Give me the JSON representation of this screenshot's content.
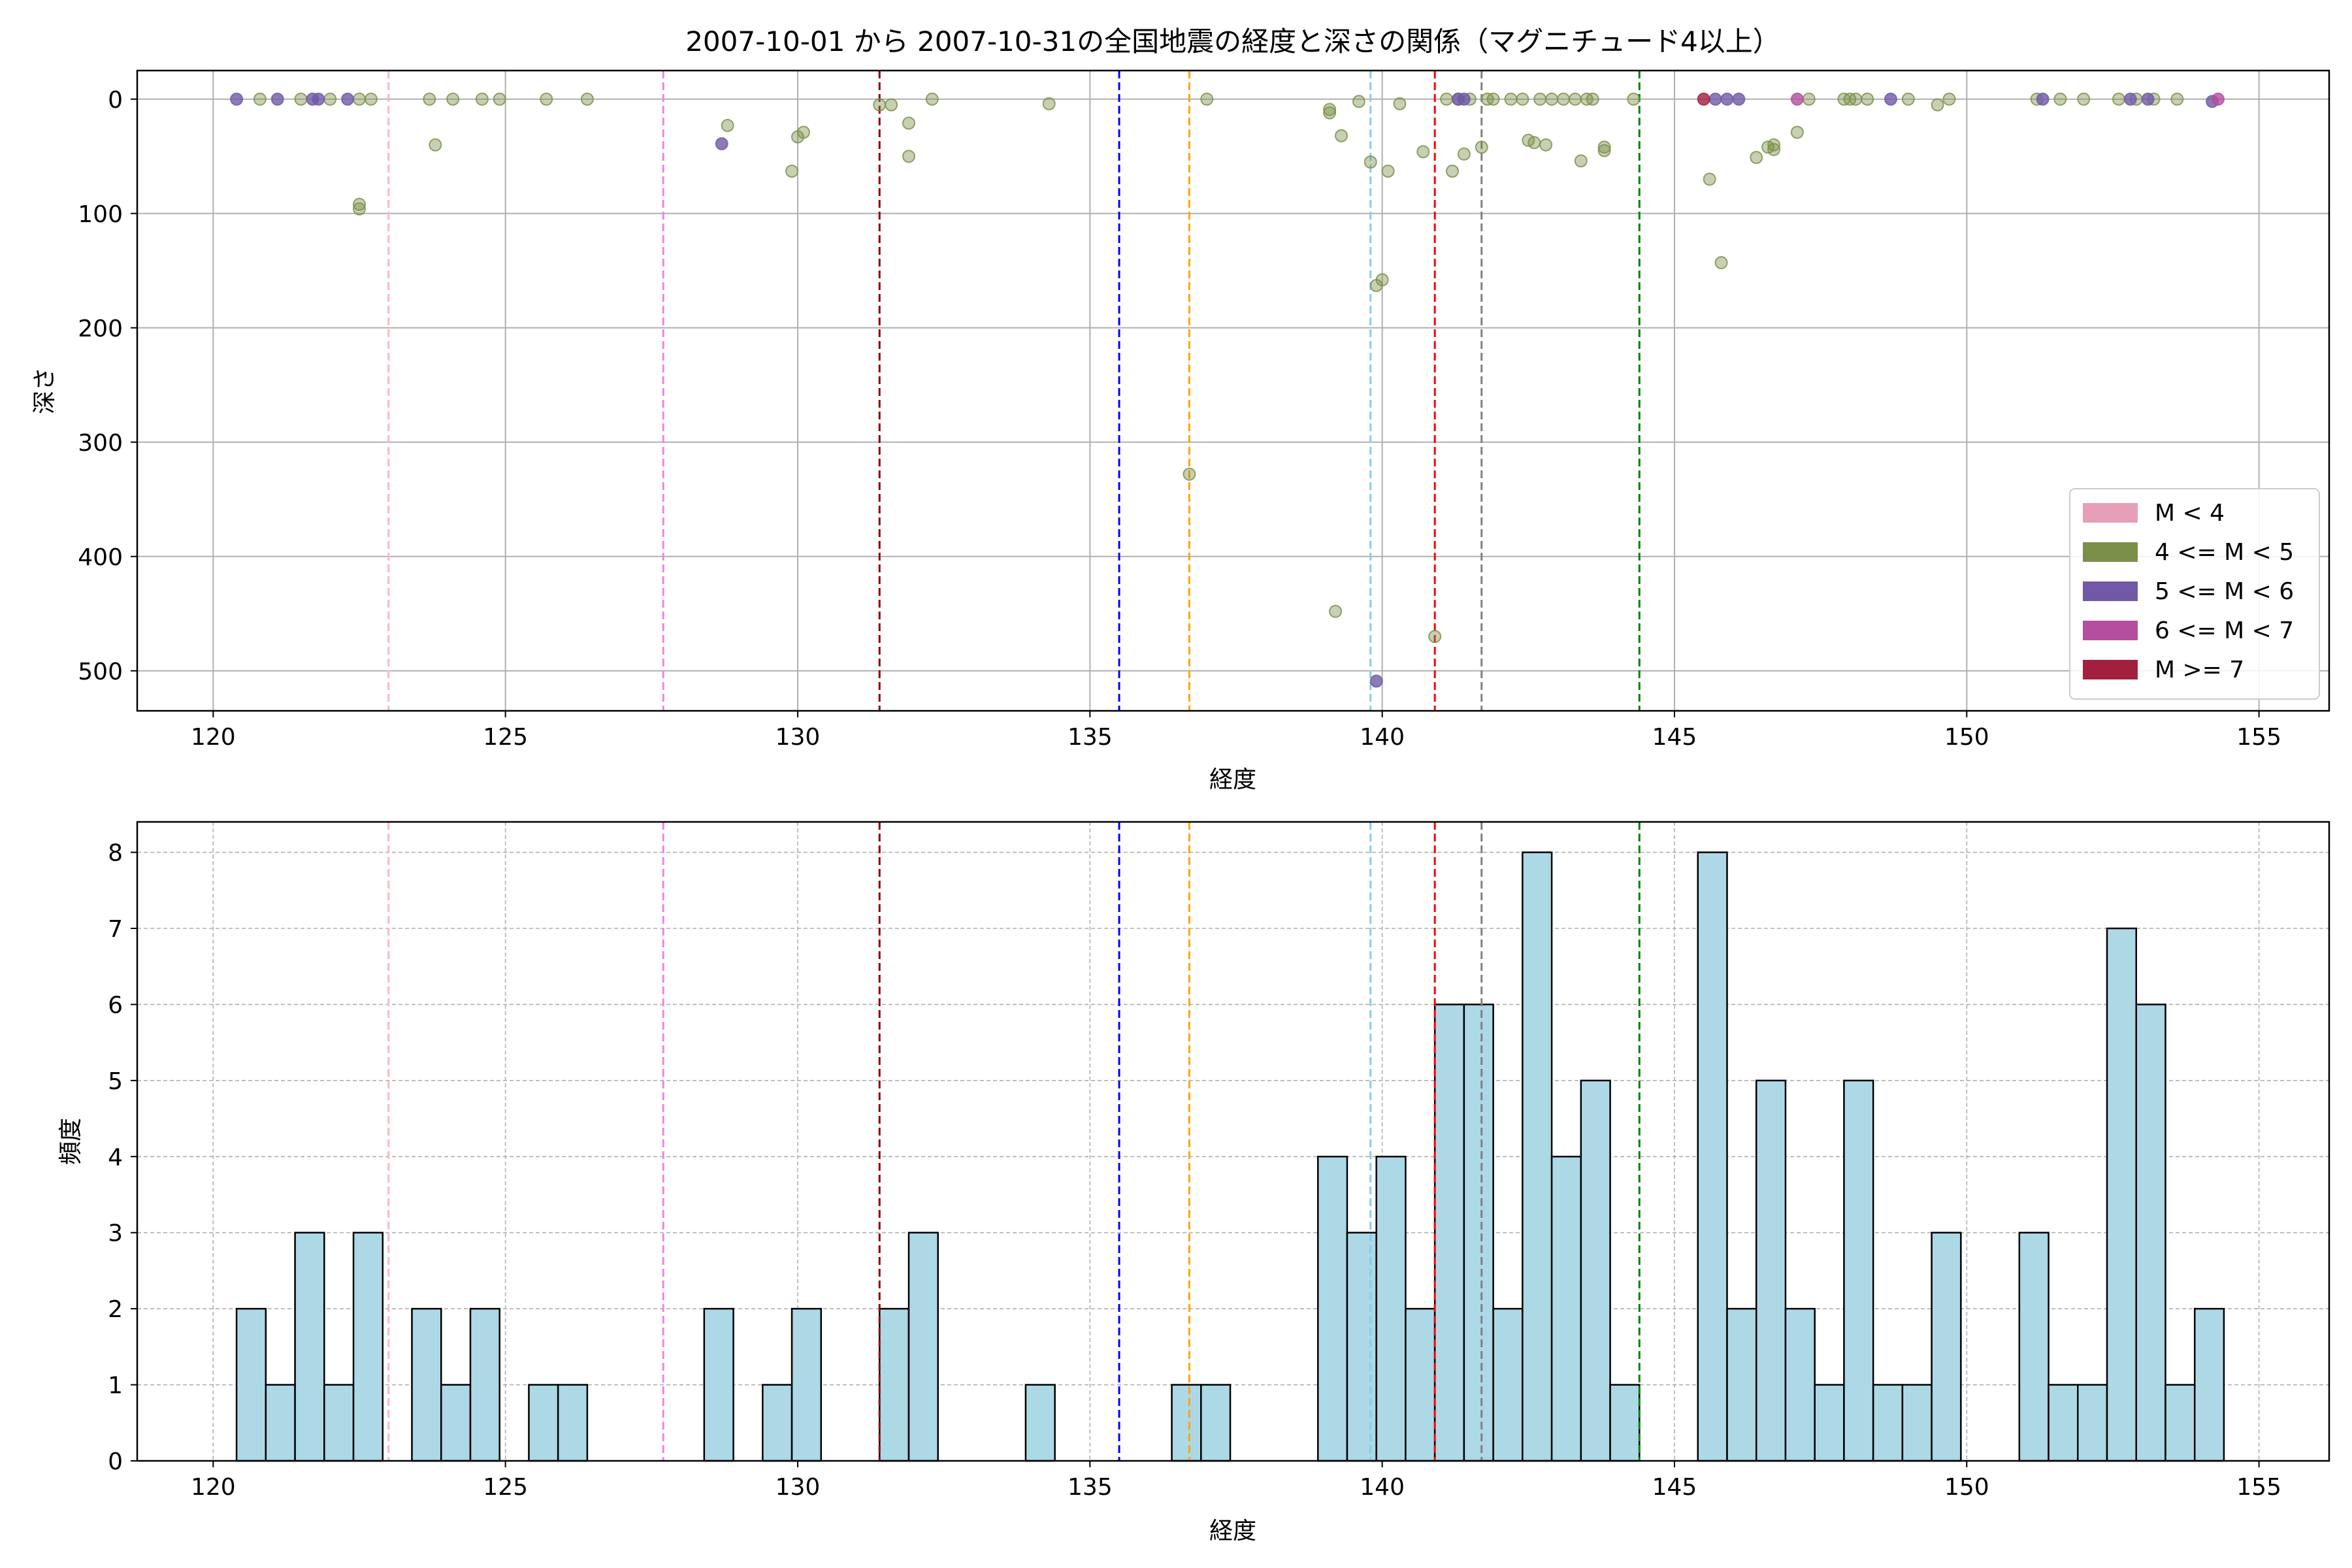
{
  "chart_data": [
    {
      "type": "scatter",
      "title": "2007-10-01 から 2007-10-31の全国地震の経度と深さの関係（マグニチュード4以上）",
      "xlabel": "経度",
      "ylabel": "深さ",
      "xlim": [
        118.7,
        156.2
      ],
      "ylim": [
        535,
        -25
      ],
      "y_inverted": true,
      "xticks": [
        120,
        125,
        130,
        135,
        140,
        145,
        150,
        155
      ],
      "yticks": [
        0,
        100,
        200,
        300,
        400,
        500
      ],
      "grid": true,
      "legend_position": "lower-right",
      "legend": [
        {
          "label": "M < 4",
          "color": "#e79eb8"
        },
        {
          "label": "4 <= M < 5",
          "color": "#7a8f47"
        },
        {
          "label": "5 <= M < 6",
          "color": "#7159a7"
        },
        {
          "label": "6 <= M < 7",
          "color": "#b54e9e"
        },
        {
          "label": "M >= 7",
          "color": "#a31f3e"
        }
      ],
      "vlines": [
        {
          "x": 123.0,
          "color": "#ffb6c1"
        },
        {
          "x": 127.7,
          "color": "#ee82ee"
        },
        {
          "x": 131.4,
          "color": "#8b0000"
        },
        {
          "x": 135.5,
          "color": "#0000ff"
        },
        {
          "x": 136.7,
          "color": "#ffa500"
        },
        {
          "x": 139.8,
          "color": "#87ceeb"
        },
        {
          "x": 140.9,
          "color": "#ff0000"
        },
        {
          "x": 141.7,
          "color": "#808080"
        },
        {
          "x": 144.4,
          "color": "#008000"
        }
      ],
      "series": [
        {
          "name": "4 <= M < 5",
          "color": "#7a8f47",
          "points": [
            [
              120.8,
              0
            ],
            [
              121.5,
              0
            ],
            [
              122.0,
              0
            ],
            [
              122.5,
              0
            ],
            [
              122.5,
              92
            ],
            [
              122.5,
              96
            ],
            [
              122.7,
              0
            ],
            [
              123.7,
              0
            ],
            [
              123.8,
              40
            ],
            [
              124.1,
              0
            ],
            [
              124.6,
              0
            ],
            [
              124.9,
              0
            ],
            [
              125.7,
              0
            ],
            [
              126.4,
              0
            ],
            [
              128.8,
              23
            ],
            [
              129.9,
              63
            ],
            [
              130.0,
              33
            ],
            [
              130.1,
              29
            ],
            [
              131.4,
              5
            ],
            [
              131.6,
              5
            ],
            [
              131.9,
              21
            ],
            [
              131.9,
              50
            ],
            [
              132.3,
              0
            ],
            [
              134.3,
              4
            ],
            [
              136.7,
              328
            ],
            [
              137.0,
              0
            ],
            [
              139.1,
              9
            ],
            [
              139.1,
              12
            ],
            [
              139.2,
              448
            ],
            [
              139.3,
              32
            ],
            [
              139.6,
              2
            ],
            [
              139.8,
              55
            ],
            [
              139.9,
              163
            ],
            [
              140.0,
              158
            ],
            [
              140.1,
              63
            ],
            [
              140.3,
              4
            ],
            [
              140.7,
              46
            ],
            [
              140.9,
              470
            ],
            [
              141.1,
              0
            ],
            [
              141.2,
              63
            ],
            [
              141.3,
              0
            ],
            [
              141.4,
              48
            ],
            [
              141.5,
              0
            ],
            [
              141.7,
              42
            ],
            [
              141.8,
              0
            ],
            [
              141.9,
              0
            ],
            [
              142.2,
              0
            ],
            [
              142.4,
              0
            ],
            [
              142.5,
              36
            ],
            [
              142.6,
              38
            ],
            [
              142.7,
              0
            ],
            [
              142.8,
              40
            ],
            [
              142.9,
              0
            ],
            [
              143.1,
              0
            ],
            [
              143.3,
              0
            ],
            [
              143.4,
              54
            ],
            [
              143.5,
              0
            ],
            [
              143.6,
              0
            ],
            [
              143.8,
              42
            ],
            [
              143.8,
              45
            ],
            [
              144.3,
              0
            ],
            [
              145.6,
              70
            ],
            [
              145.8,
              143
            ],
            [
              146.4,
              51
            ],
            [
              146.6,
              42
            ],
            [
              146.7,
              40
            ],
            [
              146.7,
              44
            ],
            [
              147.1,
              29
            ],
            [
              147.3,
              0
            ],
            [
              147.9,
              0
            ],
            [
              148.0,
              0
            ],
            [
              148.1,
              0
            ],
            [
              148.3,
              0
            ],
            [
              149.0,
              0
            ],
            [
              149.5,
              5
            ],
            [
              149.7,
              0
            ],
            [
              151.2,
              0
            ],
            [
              151.6,
              0
            ],
            [
              152.0,
              0
            ],
            [
              152.6,
              0
            ],
            [
              152.9,
              0
            ],
            [
              153.2,
              0
            ],
            [
              153.6,
              0
            ]
          ]
        },
        {
          "name": "5 <= M < 6",
          "color": "#7159a7",
          "points": [
            [
              120.4,
              0
            ],
            [
              121.1,
              0
            ],
            [
              121.7,
              0
            ],
            [
              121.8,
              0
            ],
            [
              122.3,
              0
            ],
            [
              128.7,
              39
            ],
            [
              139.9,
              509
            ],
            [
              141.3,
              0
            ],
            [
              141.4,
              0
            ],
            [
              145.7,
              0
            ],
            [
              145.9,
              0
            ],
            [
              146.1,
              0
            ],
            [
              148.7,
              0
            ],
            [
              151.3,
              0
            ],
            [
              152.8,
              0
            ],
            [
              153.1,
              0
            ],
            [
              154.2,
              2
            ]
          ]
        },
        {
          "name": "6 <= M < 7",
          "color": "#b54e9e",
          "points": [
            [
              147.1,
              0
            ],
            [
              154.3,
              0
            ]
          ]
        },
        {
          "name": "M >= 7",
          "color": "#a31f3e",
          "points": [
            [
              145.5,
              0
            ]
          ]
        }
      ]
    },
    {
      "type": "bar",
      "xlabel": "経度",
      "ylabel": "頻度",
      "xlim": [
        118.7,
        156.2
      ],
      "ylim": [
        0,
        8.4
      ],
      "xticks": [
        120,
        125,
        130,
        135,
        140,
        145,
        150,
        155
      ],
      "yticks": [
        0,
        1,
        2,
        3,
        4,
        5,
        6,
        7,
        8
      ],
      "grid": true,
      "bar_color": "#add8e6",
      "bins": [
        [
          120.4,
          2
        ],
        [
          120.9,
          1
        ],
        [
          121.4,
          3
        ],
        [
          121.9,
          1
        ],
        [
          122.4,
          3
        ],
        [
          123.4,
          2
        ],
        [
          123.9,
          1
        ],
        [
          124.4,
          2
        ],
        [
          125.4,
          1
        ],
        [
          125.9,
          1
        ],
        [
          128.4,
          2
        ],
        [
          129.4,
          1
        ],
        [
          129.9,
          2
        ],
        [
          131.4,
          2
        ],
        [
          131.9,
          3
        ],
        [
          133.9,
          1
        ],
        [
          136.4,
          1
        ],
        [
          136.9,
          1
        ],
        [
          138.9,
          4
        ],
        [
          139.4,
          3
        ],
        [
          139.9,
          4
        ],
        [
          140.4,
          2
        ],
        [
          140.9,
          6
        ],
        [
          141.4,
          6
        ],
        [
          141.9,
          2
        ],
        [
          142.4,
          8
        ],
        [
          142.9,
          4
        ],
        [
          143.4,
          5
        ],
        [
          143.9,
          1
        ],
        [
          145.4,
          8
        ],
        [
          145.9,
          2
        ],
        [
          146.4,
          5
        ],
        [
          146.9,
          2
        ],
        [
          147.4,
          1
        ],
        [
          147.9,
          5
        ],
        [
          148.4,
          1
        ],
        [
          148.9,
          1
        ],
        [
          149.4,
          3
        ],
        [
          150.9,
          3
        ],
        [
          151.4,
          1
        ],
        [
          151.9,
          1
        ],
        [
          152.4,
          7
        ],
        [
          152.9,
          6
        ],
        [
          153.4,
          1
        ],
        [
          153.9,
          2
        ]
      ],
      "bin_width": 0.5,
      "vlines": [
        {
          "x": 123.0,
          "color": "#ffb6c1"
        },
        {
          "x": 127.7,
          "color": "#ee82ee"
        },
        {
          "x": 131.4,
          "color": "#8b0000"
        },
        {
          "x": 135.5,
          "color": "#0000ff"
        },
        {
          "x": 136.7,
          "color": "#ffa500"
        },
        {
          "x": 139.8,
          "color": "#87ceeb"
        },
        {
          "x": 140.9,
          "color": "#ff0000"
        },
        {
          "x": 141.7,
          "color": "#808080"
        },
        {
          "x": 144.4,
          "color": "#008000"
        }
      ]
    }
  ]
}
